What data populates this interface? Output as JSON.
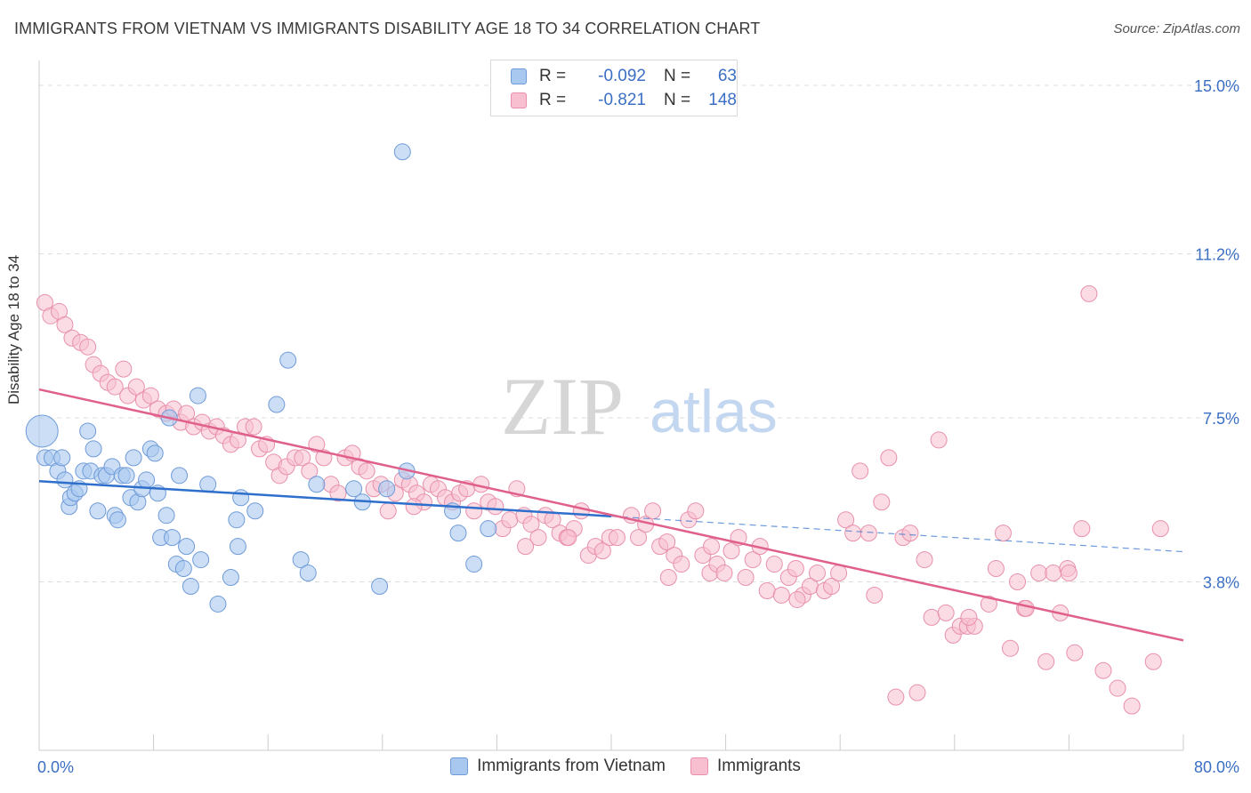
{
  "header": {
    "title": "IMMIGRANTS FROM VIETNAM VS IMMIGRANTS DISABILITY AGE 18 TO 34 CORRELATION CHART",
    "source": "Source: ZipAtlas.com"
  },
  "watermark": {
    "zip": "ZIP",
    "atlas": "atlas"
  },
  "stats_legend": {
    "rows": [
      {
        "r_label": "R =",
        "r_value": "-0.092",
        "n_label": "N =",
        "n_value": "63",
        "color": "#a9c8f0",
        "stroke": "#6f9bd8"
      },
      {
        "r_label": "R =",
        "r_value": "-0.821",
        "n_label": "N =",
        "n_value": "148",
        "color": "#f8bfd0",
        "stroke": "#e890ab"
      }
    ]
  },
  "colors": {
    "blue_fill": "#a9c8f0",
    "blue_stroke": "#6f9bd8",
    "blue_line": "#2f6fcc",
    "pink_fill": "#f8bfd0",
    "pink_stroke": "#e890ab",
    "pink_line": "#e0608c",
    "grid": "#dddddd",
    "tick_label": "#3b6fc4"
  },
  "chart_data": {
    "type": "scatter",
    "title": "IMMIGRANTS FROM VIETNAM VS IMMIGRANTS DISABILITY AGE 18 TO 34 CORRELATION CHART",
    "xlabel": "",
    "ylabel": "Disability Age 18 to 34",
    "xlim": [
      0,
      80
    ],
    "ylim": [
      0,
      15.6
    ],
    "x_tick_labels": [
      "0.0%",
      "80.0%"
    ],
    "y_ticks": [
      3.8,
      7.5,
      11.2,
      15.0
    ],
    "y_tick_labels": [
      "3.8%",
      "7.5%",
      "11.2%",
      "15.0%"
    ],
    "grid": true,
    "legend_position": "bottom",
    "series": [
      {
        "name": "Immigrants from Vietnam",
        "color": "#a9c8f0",
        "trend": {
          "x": [
            0,
            40
          ],
          "y": [
            6.07,
            5.28
          ],
          "dashed_to": [
            80,
            4.48
          ]
        },
        "points": [
          [
            0.2,
            7.2
          ],
          [
            0.4,
            6.6
          ],
          [
            0.9,
            6.6
          ],
          [
            1.3,
            6.3
          ],
          [
            1.6,
            6.6
          ],
          [
            1.8,
            6.1
          ],
          [
            2.1,
            5.5
          ],
          [
            2.2,
            5.7
          ],
          [
            2.5,
            5.8
          ],
          [
            2.8,
            5.9
          ],
          [
            3.1,
            6.3
          ],
          [
            3.4,
            7.2
          ],
          [
            3.6,
            6.3
          ],
          [
            3.8,
            6.8
          ],
          [
            4.1,
            5.4
          ],
          [
            4.4,
            6.2
          ],
          [
            4.7,
            6.2
          ],
          [
            5.1,
            6.4
          ],
          [
            5.3,
            5.3
          ],
          [
            5.5,
            5.2
          ],
          [
            5.8,
            6.2
          ],
          [
            6.1,
            6.2
          ],
          [
            6.4,
            5.7
          ],
          [
            6.6,
            6.6
          ],
          [
            6.9,
            5.6
          ],
          [
            7.2,
            5.9
          ],
          [
            7.5,
            6.1
          ],
          [
            7.8,
            6.8
          ],
          [
            8.1,
            6.7
          ],
          [
            8.3,
            5.8
          ],
          [
            8.5,
            4.8
          ],
          [
            8.9,
            5.3
          ],
          [
            9.1,
            7.5
          ],
          [
            9.3,
            4.8
          ],
          [
            9.6,
            4.2
          ],
          [
            9.8,
            6.2
          ],
          [
            10.1,
            4.1
          ],
          [
            10.3,
            4.6
          ],
          [
            10.6,
            3.7
          ],
          [
            11.3,
            4.3
          ],
          [
            11.1,
            8.0
          ],
          [
            11.8,
            6.0
          ],
          [
            12.5,
            3.3
          ],
          [
            13.4,
            3.9
          ],
          [
            13.8,
            5.2
          ],
          [
            13.9,
            4.6
          ],
          [
            14.1,
            5.7
          ],
          [
            15.1,
            5.4
          ],
          [
            16.6,
            7.8
          ],
          [
            17.4,
            8.8
          ],
          [
            18.3,
            4.3
          ],
          [
            18.8,
            4.0
          ],
          [
            19.4,
            6.0
          ],
          [
            22.6,
            5.6
          ],
          [
            23.8,
            3.7
          ],
          [
            24.3,
            5.9
          ],
          [
            25.4,
            13.5
          ],
          [
            25.7,
            6.3
          ],
          [
            28.9,
            5.4
          ],
          [
            29.3,
            4.9
          ],
          [
            30.4,
            4.2
          ],
          [
            31.4,
            5.0
          ],
          [
            22.0,
            5.9
          ]
        ]
      },
      {
        "name": "Immigrants",
        "color": "#f8bfd0",
        "trend": {
          "x": [
            0,
            80
          ],
          "y": [
            8.14,
            2.48
          ]
        },
        "points": [
          [
            0.4,
            10.1
          ],
          [
            0.8,
            9.8
          ],
          [
            1.4,
            9.9
          ],
          [
            1.8,
            9.6
          ],
          [
            2.3,
            9.3
          ],
          [
            2.9,
            9.2
          ],
          [
            3.4,
            9.1
          ],
          [
            3.8,
            8.7
          ],
          [
            4.3,
            8.5
          ],
          [
            4.8,
            8.3
          ],
          [
            5.3,
            8.2
          ],
          [
            5.9,
            8.6
          ],
          [
            6.2,
            8.0
          ],
          [
            6.8,
            8.2
          ],
          [
            7.3,
            7.9
          ],
          [
            7.8,
            8.0
          ],
          [
            8.3,
            7.7
          ],
          [
            8.9,
            7.6
          ],
          [
            9.4,
            7.7
          ],
          [
            9.9,
            7.4
          ],
          [
            10.3,
            7.6
          ],
          [
            10.8,
            7.3
          ],
          [
            11.4,
            7.4
          ],
          [
            11.9,
            7.2
          ],
          [
            12.4,
            7.3
          ],
          [
            12.9,
            7.1
          ],
          [
            13.4,
            6.9
          ],
          [
            13.9,
            7.0
          ],
          [
            14.4,
            7.3
          ],
          [
            15.0,
            7.3
          ],
          [
            15.4,
            6.8
          ],
          [
            15.9,
            6.9
          ],
          [
            16.4,
            6.5
          ],
          [
            16.8,
            6.2
          ],
          [
            17.3,
            6.4
          ],
          [
            17.9,
            6.6
          ],
          [
            18.4,
            6.6
          ],
          [
            18.9,
            6.3
          ],
          [
            19.4,
            6.9
          ],
          [
            19.9,
            6.6
          ],
          [
            20.4,
            6.0
          ],
          [
            20.9,
            5.8
          ],
          [
            21.4,
            6.6
          ],
          [
            21.9,
            6.7
          ],
          [
            22.4,
            6.4
          ],
          [
            22.9,
            6.3
          ],
          [
            23.4,
            5.9
          ],
          [
            23.9,
            6.0
          ],
          [
            24.4,
            5.4
          ],
          [
            24.9,
            5.8
          ],
          [
            25.4,
            6.1
          ],
          [
            25.9,
            6.0
          ],
          [
            26.4,
            5.8
          ],
          [
            26.9,
            5.6
          ],
          [
            27.4,
            6.0
          ],
          [
            27.9,
            5.9
          ],
          [
            28.4,
            5.7
          ],
          [
            28.9,
            5.6
          ],
          [
            29.4,
            5.8
          ],
          [
            29.9,
            5.9
          ],
          [
            30.4,
            5.4
          ],
          [
            30.9,
            6.0
          ],
          [
            31.4,
            5.6
          ],
          [
            31.9,
            5.5
          ],
          [
            32.4,
            5.0
          ],
          [
            32.9,
            5.2
          ],
          [
            33.4,
            5.9
          ],
          [
            33.9,
            5.3
          ],
          [
            34.4,
            5.1
          ],
          [
            34.9,
            4.8
          ],
          [
            35.4,
            5.3
          ],
          [
            35.9,
            5.2
          ],
          [
            36.4,
            4.9
          ],
          [
            36.9,
            4.8
          ],
          [
            37.4,
            5.0
          ],
          [
            37.9,
            5.4
          ],
          [
            38.4,
            4.4
          ],
          [
            38.9,
            4.6
          ],
          [
            39.4,
            4.5
          ],
          [
            39.9,
            4.8
          ],
          [
            40.4,
            4.8
          ],
          [
            41.4,
            5.3
          ],
          [
            41.9,
            4.8
          ],
          [
            42.4,
            5.1
          ],
          [
            42.9,
            5.4
          ],
          [
            43.4,
            4.6
          ],
          [
            43.9,
            4.7
          ],
          [
            44.4,
            4.4
          ],
          [
            44.9,
            4.2
          ],
          [
            45.4,
            5.2
          ],
          [
            45.9,
            5.4
          ],
          [
            46.4,
            4.4
          ],
          [
            46.9,
            4.0
          ],
          [
            47.4,
            4.2
          ],
          [
            47.9,
            4.0
          ],
          [
            48.4,
            4.5
          ],
          [
            48.9,
            4.8
          ],
          [
            49.4,
            3.9
          ],
          [
            49.9,
            4.3
          ],
          [
            50.4,
            4.6
          ],
          [
            50.9,
            3.6
          ],
          [
            51.4,
            4.2
          ],
          [
            51.9,
            3.5
          ],
          [
            52.4,
            3.9
          ],
          [
            52.9,
            4.1
          ],
          [
            53.4,
            3.5
          ],
          [
            53.9,
            3.7
          ],
          [
            54.4,
            4.0
          ],
          [
            54.9,
            3.6
          ],
          [
            55.4,
            3.7
          ],
          [
            55.9,
            4.0
          ],
          [
            56.4,
            5.2
          ],
          [
            56.9,
            4.9
          ],
          [
            57.4,
            6.3
          ],
          [
            58.4,
            3.5
          ],
          [
            58.9,
            5.6
          ],
          [
            59.4,
            6.6
          ],
          [
            60.4,
            4.8
          ],
          [
            60.9,
            4.9
          ],
          [
            61.9,
            4.3
          ],
          [
            62.4,
            3.0
          ],
          [
            62.9,
            7.0
          ],
          [
            63.4,
            3.1
          ],
          [
            63.9,
            2.6
          ],
          [
            64.4,
            2.8
          ],
          [
            64.9,
            2.8
          ],
          [
            65.4,
            2.8
          ],
          [
            66.4,
            3.3
          ],
          [
            66.9,
            4.1
          ],
          [
            67.4,
            4.9
          ],
          [
            67.9,
            2.3
          ],
          [
            68.4,
            3.8
          ],
          [
            68.9,
            3.2
          ],
          [
            69.9,
            4.0
          ],
          [
            70.4,
            2.0
          ],
          [
            70.9,
            4.0
          ],
          [
            71.4,
            3.1
          ],
          [
            71.9,
            4.1
          ],
          [
            72.4,
            2.2
          ],
          [
            72.9,
            5.0
          ],
          [
            73.4,
            10.3
          ],
          [
            74.4,
            1.8
          ],
          [
            75.4,
            1.4
          ],
          [
            76.4,
            1.0
          ],
          [
            78.4,
            5.0
          ],
          [
            77.9,
            2.0
          ],
          [
            61.4,
            1.3
          ],
          [
            59.9,
            1.2
          ],
          [
            37.0,
            4.8
          ],
          [
            26.2,
            5.5
          ],
          [
            34.0,
            4.6
          ],
          [
            44.0,
            3.9
          ],
          [
            47.0,
            4.6
          ],
          [
            53.0,
            3.4
          ],
          [
            58.0,
            4.9
          ],
          [
            65.0,
            3.0
          ],
          [
            69.0,
            3.2
          ],
          [
            72.0,
            4.0
          ]
        ]
      }
    ]
  },
  "axes": {
    "y_axis_label": "Disability Age 18 to 34",
    "x_min_label": "0.0%",
    "x_max_label": "80.0%"
  },
  "legend": {
    "items": [
      "Immigrants from Vietnam",
      "Immigrants"
    ]
  }
}
